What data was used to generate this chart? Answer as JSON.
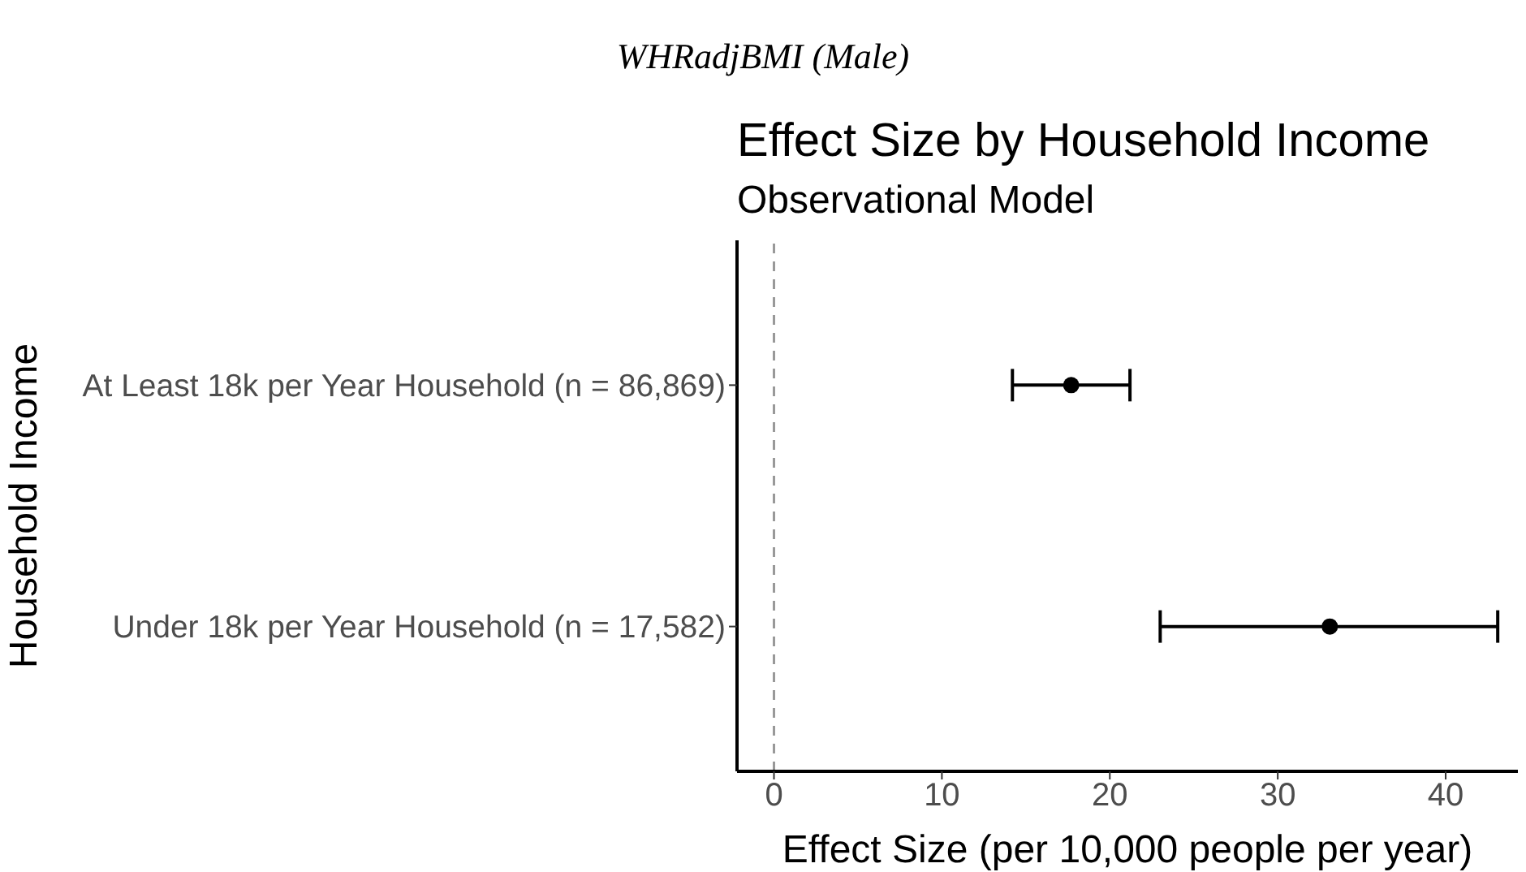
{
  "chart_data": {
    "type": "scatter",
    "orientation": "horizontal",
    "title": "Effect Size by Household Income",
    "subtitle": "Observational Model",
    "annotations": [
      "WHRadjBMI (Male)"
    ],
    "xlabel": "Effect Size (per 10,000 people per year)",
    "ylabel": "Household Income",
    "categories": [
      "At Least 18k per Year Household (n = 86,869)",
      "Under 18k per Year Household (n = 17,582)"
    ],
    "values": [
      17.7,
      33.1
    ],
    "errors": [
      [
        14.2,
        21.2
      ],
      [
        23.0,
        43.1
      ]
    ],
    "color": "#000000",
    "marker": "circle",
    "xlim": [
      -2.2,
      44.3
    ],
    "xticks": [
      0,
      10,
      20,
      30,
      40
    ],
    "grid": false,
    "ref_lines": [
      {
        "axis": "x",
        "value": 0,
        "color": "#999999",
        "line_style": "dashed"
      }
    ]
  }
}
